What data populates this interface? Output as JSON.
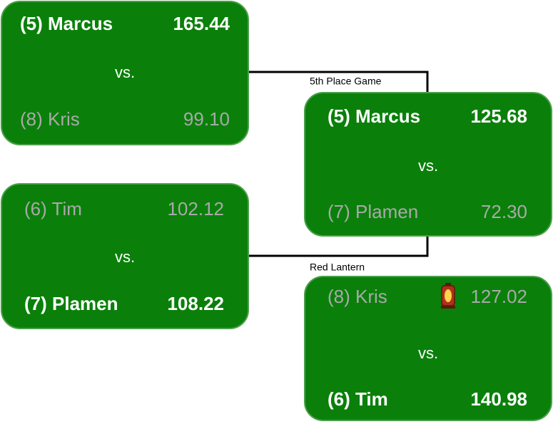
{
  "matchups": [
    {
      "teams": [
        {
          "name": "(5) Marcus",
          "score": "165.44",
          "winner": true
        },
        {
          "name": "(8) Kris",
          "score": "99.10",
          "winner": false
        }
      ],
      "vs": "vs."
    },
    {
      "teams": [
        {
          "name": "(6) Tim",
          "score": "102.12",
          "winner": false
        },
        {
          "name": "(7) Plamen",
          "score": "108.22",
          "winner": true
        }
      ],
      "vs": "vs."
    },
    {
      "label": "5th Place Game",
      "teams": [
        {
          "name": "(5) Marcus",
          "score": "125.68",
          "winner": true
        },
        {
          "name": "(7) Plamen",
          "score": "72.30",
          "winner": false
        }
      ],
      "vs": "vs."
    },
    {
      "label": "Red Lantern",
      "teams": [
        {
          "name": "(8) Kris",
          "score": "127.02",
          "winner": false
        },
        {
          "name": "(6) Tim",
          "score": "140.98",
          "winner": true
        }
      ],
      "vs": "vs."
    }
  ]
}
